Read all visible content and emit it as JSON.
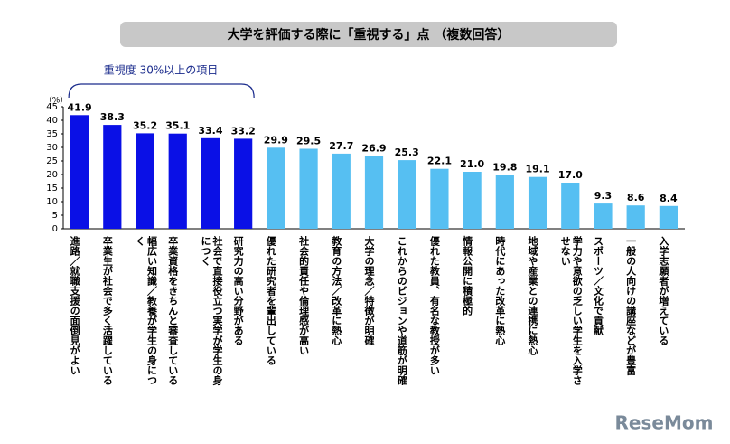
{
  "chart_data": {
    "type": "bar",
    "title": "大学を評価する際に「重視する」点 （複数回答）",
    "annotation": "重視度 30%以上の項目",
    "y_unit": "（%）",
    "watermark": "ReseMom",
    "categories": [
      "進路／就職支援の面倒見がよい",
      "卒業生が社会で多く活躍している",
      "幅広い知識／教養が学生の身につく",
      "卒業資格をきちんと審査している",
      "社会で直接役立つ実学が学生の身につく",
      "研究力の高い分野がある",
      "優れた研究者を輩出している",
      "社会的責任や倫理感が高い",
      "教育の方法／改革に熱心",
      "大学の理念／特徴が明確",
      "これからのビジョンや道筋が明確",
      "優れた教員、有名な教授が多い",
      "情報公開に積極的",
      "時代にあった改革に熱心",
      "地域や産業との連携に熱心",
      "学力や意欲の乏しい学生を入学させない",
      "スポーツ／文化で貢献",
      "一般の人向けの講座などが豊富",
      "入学志願者が増えている"
    ],
    "values": [
      41.9,
      38.3,
      35.2,
      35.1,
      33.4,
      33.2,
      29.9,
      29.5,
      27.7,
      26.9,
      25.3,
      22.1,
      21.0,
      19.8,
      19.1,
      17.0,
      9.3,
      8.6,
      8.4
    ],
    "value_labels": [
      "41.9",
      "38.3",
      "35.2",
      "35.1",
      "33.4",
      "33.2",
      "29.9",
      "29.5",
      "27.7",
      "26.9",
      "25.3",
      "22.1",
      "21.0",
      "19.8",
      "19.1",
      "17.0",
      "9.3",
      "8.6",
      "8.4"
    ],
    "colors": [
      "#0a10e6",
      "#0a10e6",
      "#0a10e6",
      "#0a10e6",
      "#0a10e6",
      "#0a10e6",
      "#56bff2",
      "#56bff2",
      "#56bff2",
      "#56bff2",
      "#56bff2",
      "#56bff2",
      "#56bff2",
      "#56bff2",
      "#56bff2",
      "#56bff2",
      "#56bff2",
      "#56bff2",
      "#56bff2"
    ],
    "ylim": [
      0,
      45
    ],
    "yticks": [
      0,
      5,
      10,
      15,
      20,
      25,
      30,
      35,
      40,
      45
    ]
  }
}
